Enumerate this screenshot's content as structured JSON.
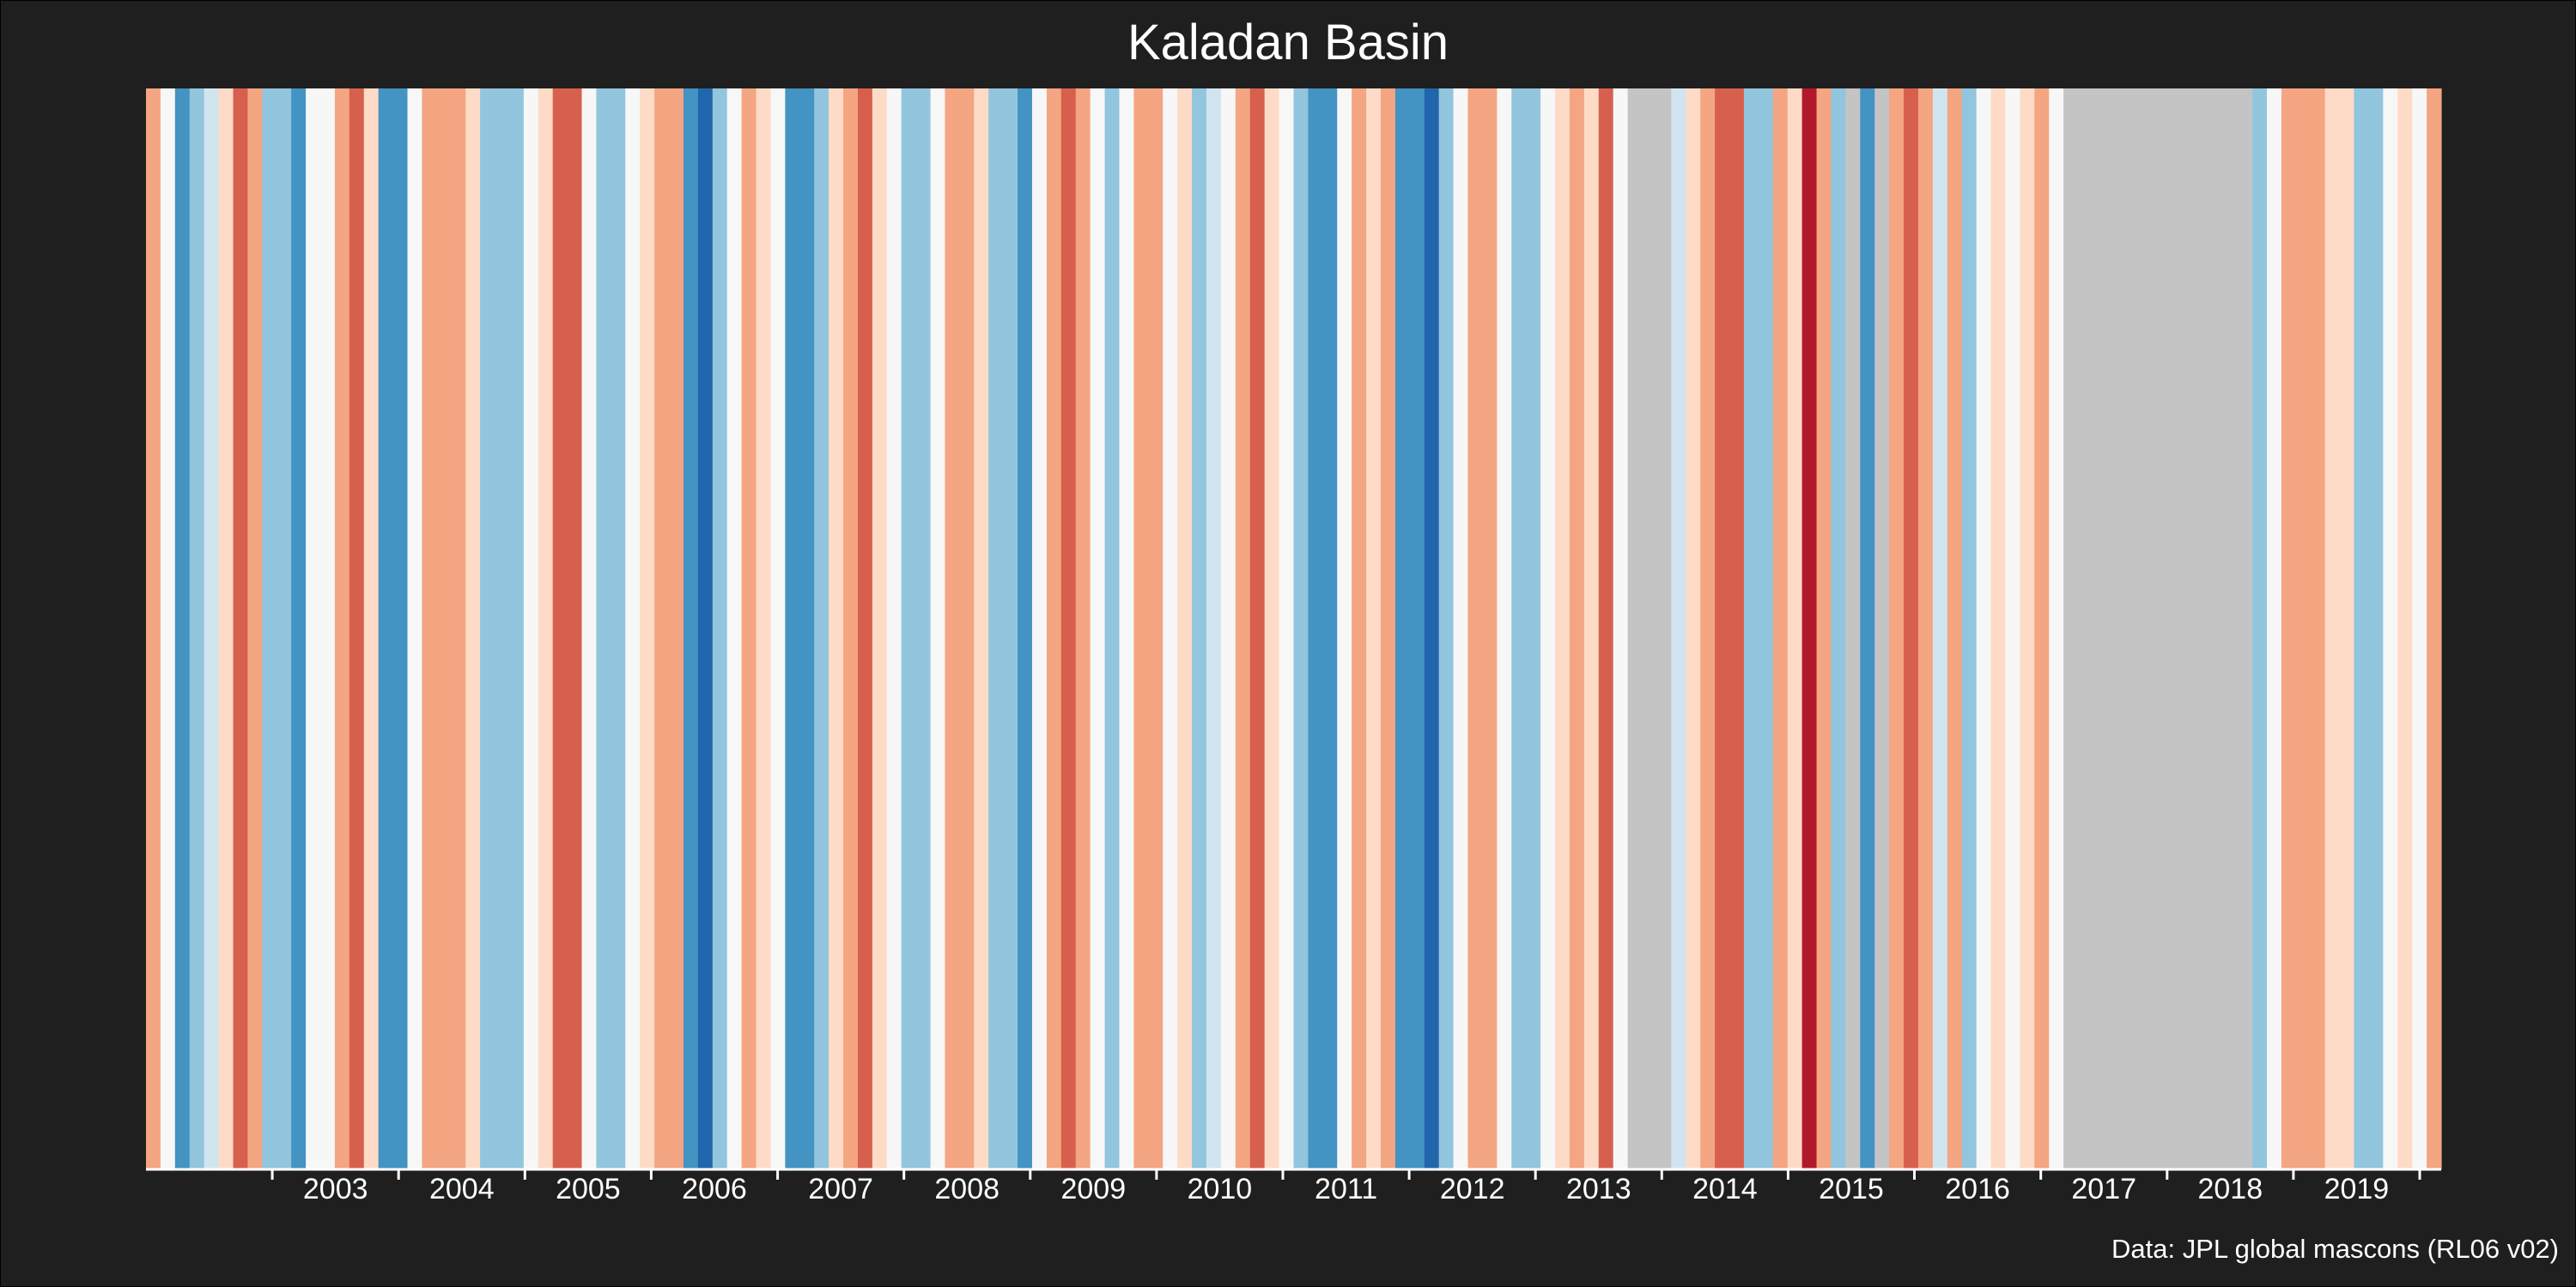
{
  "chart_data": {
    "type": "warming-stripes",
    "title": "Kaladan Basin",
    "caption": "Data: JPL global mascons (RL06 v02)",
    "x_range": [
      2002.0,
      2020.17
    ],
    "x_ticks": [
      2003,
      2004,
      2005,
      2006,
      2007,
      2008,
      2009,
      2010,
      2011,
      2012,
      2013,
      2014,
      2015,
      2016,
      2017,
      2018,
      2019
    ],
    "tick_label_offset": 0.5,
    "missing_color": "#c4c4c4",
    "palette": {
      "-4": "#2166ac",
      "-3": "#4393c3",
      "-2": "#92c5de",
      "-1": "#d1e5f0",
      "0": "#f7f7f7",
      "1": "#fddbc7",
      "2": "#f4a582",
      "3": "#d6604d",
      "4": "#b2182b"
    },
    "stripe_levels": [
      2,
      0,
      -3,
      -2,
      -1,
      1,
      3,
      2,
      -2,
      -2,
      -3,
      0,
      0,
      2,
      3,
      1,
      -3,
      -3,
      0,
      2,
      2,
      2,
      1,
      -2,
      -2,
      -2,
      0,
      1,
      3,
      3,
      0,
      -2,
      -2,
      0,
      1,
      2,
      2,
      -3,
      -4,
      -2,
      0,
      2,
      1,
      0,
      -3,
      -3,
      -2,
      1,
      2,
      3,
      1,
      0,
      -2,
      -2,
      0,
      2,
      2,
      1,
      -2,
      -2,
      -3,
      0,
      2,
      3,
      2,
      0,
      -2,
      0,
      2,
      2,
      0,
      1,
      -2,
      -1,
      0,
      2,
      3,
      1,
      0,
      -2,
      -3,
      -3,
      0,
      2,
      1,
      2,
      -3,
      -3,
      -4,
      -2,
      0,
      2,
      2,
      0,
      -2,
      -2,
      0,
      1,
      2,
      1,
      3,
      0,
      null,
      null,
      null,
      -1,
      1,
      2,
      3,
      3,
      -2,
      -2,
      2,
      1,
      4,
      2,
      -2,
      null,
      -3,
      null,
      2,
      3,
      2,
      -1,
      2,
      -2,
      0,
      1,
      0,
      1,
      2,
      0,
      null,
      null,
      null,
      null,
      null,
      null,
      null,
      null,
      null,
      null,
      null,
      null,
      null,
      -2,
      0,
      2,
      2,
      2,
      1,
      1,
      -2,
      -2,
      0,
      1,
      0,
      2
    ]
  }
}
